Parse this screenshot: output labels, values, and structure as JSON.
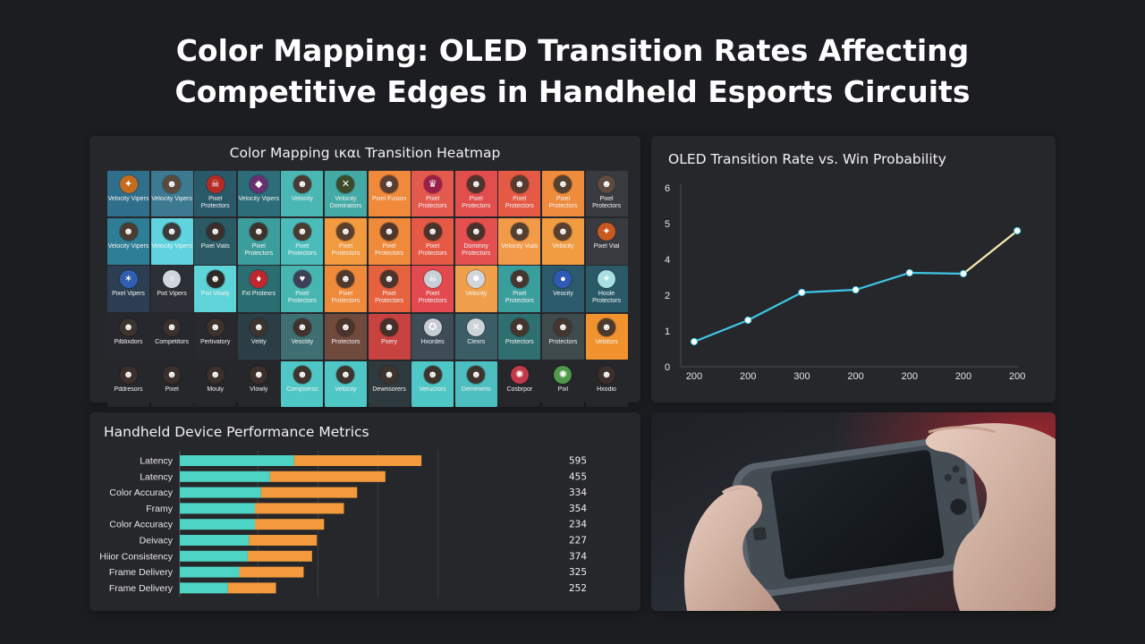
{
  "page": {
    "title_line1": "Color Mapping: OLED Transition Rates Affecting",
    "title_line2": "Competitive Edges in Handheld Esports Circuits"
  },
  "heatmap": {
    "title": "Color Mapping ικαι Transition Heatmap",
    "rows": [
      [
        {
          "label": "Velocity Vipers",
          "color": "#2f6f8c",
          "icon": "bat-emblem-icon",
          "glyph": "✦",
          "icon_color": "#c56b1d"
        },
        {
          "label": "Velocity Vipers",
          "color": "#3d7990",
          "icon": "player-portrait-icon",
          "glyph": "☻",
          "icon_color": "#5a4a3e"
        },
        {
          "label": "Pixel Protectors",
          "color": "#2a5a6a",
          "icon": "demon-emblem-icon",
          "glyph": "☠",
          "icon_color": "#b52a22"
        },
        {
          "label": "Velocity Vipers",
          "color": "#2c6d79",
          "icon": "wolf-emblem-icon",
          "glyph": "◆",
          "icon_color": "#6a2f6e"
        },
        {
          "label": "Velocity",
          "color": "#4ab7b4",
          "icon": "player-portrait-icon",
          "glyph": "☻",
          "icon_color": "#4b3a33"
        },
        {
          "label": "Velocity Dominators",
          "color": "#44aaa5",
          "icon": "eagle-emblem-icon",
          "glyph": "✕",
          "icon_color": "#3d4a2a"
        },
        {
          "label": "Pixel Fusion",
          "color": "#f1893a",
          "icon": "player-portrait-icon",
          "glyph": "☻",
          "icon_color": "#5b3f33"
        },
        {
          "label": "Pixel Protectors",
          "color": "#e45a4e",
          "icon": "crest-emblem-icon",
          "glyph": "♛",
          "icon_color": "#9a1e4a"
        },
        {
          "label": "Pixel Protectors",
          "color": "#e24d4d",
          "icon": "player-portrait-icon",
          "glyph": "☻",
          "icon_color": "#4d352d"
        },
        {
          "label": "Pixel Protectors",
          "color": "#e55a44",
          "icon": "player-portrait-icon",
          "glyph": "☻",
          "icon_color": "#5a3b30"
        },
        {
          "label": "Pixel Protectors",
          "color": "#ef8b3c",
          "icon": "player-portrait-icon",
          "glyph": "☻",
          "icon_color": "#54402f"
        },
        {
          "label": "Pixel Protectors",
          "color": "#3a3b40",
          "icon": "player-portrait-icon",
          "glyph": "☻",
          "icon_color": "#5e4a3f"
        }
      ],
      [
        {
          "label": "Velocity Vipers",
          "color": "#2e7f96",
          "icon": "player-portrait-icon",
          "glyph": "☻",
          "icon_color": "#4a3b33"
        },
        {
          "label": "Velocity Vipers",
          "color": "#5fd3e0",
          "icon": "player-portrait-icon",
          "glyph": "☻",
          "icon_color": "#3d3a3a"
        },
        {
          "label": "Pixel Vials",
          "color": "#2a5a64",
          "icon": "player-portrait-icon",
          "glyph": "☻",
          "icon_color": "#3a2f2a"
        },
        {
          "label": "Pixel Protectors",
          "color": "#3b9d9c",
          "icon": "player-portrait-icon",
          "glyph": "☻",
          "icon_color": "#3e322c"
        },
        {
          "label": "Pixel Protectors",
          "color": "#4cbcbb",
          "icon": "player-portrait-icon",
          "glyph": "☻",
          "icon_color": "#4a3b30"
        },
        {
          "label": "Pixel Protectors",
          "color": "#f19a3e",
          "icon": "player-portrait-icon",
          "glyph": "☻",
          "icon_color": "#5a3f2e"
        },
        {
          "label": "Pixel Protectors",
          "color": "#ef8a3b",
          "icon": "player-portrait-icon",
          "glyph": "☻",
          "icon_color": "#50372c"
        },
        {
          "label": "Pixel Protectors",
          "color": "#e65a45",
          "icon": "player-portrait-icon",
          "glyph": "☻",
          "icon_color": "#4a332b"
        },
        {
          "label": "Dominny Protectors",
          "color": "#e45050",
          "icon": "player-portrait-icon",
          "glyph": "☻",
          "icon_color": "#48322a"
        },
        {
          "label": "Velocity Vials",
          "color": "#f29a48",
          "icon": "player-portrait-icon",
          "glyph": "☻",
          "icon_color": "#54402f"
        },
        {
          "label": "Velocity",
          "color": "#f29c42",
          "icon": "player-portrait-icon",
          "glyph": "☻",
          "icon_color": "#57402f"
        },
        {
          "label": "Pixel Vial",
          "color": "#3a3b40",
          "icon": "bat-emblem-icon",
          "glyph": "✦",
          "icon_color": "#c95a1f"
        }
      ],
      [
        {
          "label": "Pixel Vipers",
          "color": "#2c3e52",
          "icon": "shield-emblem-icon",
          "glyph": "✶",
          "icon_color": "#2f5fb0"
        },
        {
          "label": "Pixt Vipers",
          "color": "#2c2f36",
          "icon": "shield-emblem-icon",
          "glyph": "♆",
          "icon_color": "#cfd6dd"
        },
        {
          "label": "Pixl Vowly",
          "color": "#5ed4d8",
          "icon": "player-portrait-icon",
          "glyph": "☻",
          "icon_color": "#2d2a27"
        },
        {
          "label": "Fxl Protexrs",
          "color": "#2a6e72",
          "icon": "crest-emblem-icon",
          "glyph": "♦",
          "icon_color": "#c0262d"
        },
        {
          "label": "Pixel Protectors",
          "color": "#48b6b0",
          "icon": "wolf-emblem-icon",
          "glyph": "♥",
          "icon_color": "#3c3f55"
        },
        {
          "label": "Pixel Protectors",
          "color": "#ef8a3b",
          "icon": "player-portrait-icon",
          "glyph": "☻",
          "icon_color": "#51392d"
        },
        {
          "label": "Pixel Protectors",
          "color": "#e6623f",
          "icon": "player-portrait-icon",
          "glyph": "☻",
          "icon_color": "#4a342b"
        },
        {
          "label": "Pixel Protectors",
          "color": "#e24a4f",
          "icon": "skull-emblem-icon",
          "glyph": "☠",
          "icon_color": "#c8ced6"
        },
        {
          "label": "Velocity",
          "color": "#f0a04a",
          "icon": "crest-emblem-icon",
          "glyph": "✹",
          "icon_color": "#d1d6dc"
        },
        {
          "label": "Pixel Protectors",
          "color": "#3a9e9d",
          "icon": "player-portrait-icon",
          "glyph": "☻",
          "icon_color": "#453730"
        },
        {
          "label": "Veocity",
          "color": "#2b5a6b",
          "icon": "shield-emblem-icon",
          "glyph": "●",
          "icon_color": "#2e59b5"
        },
        {
          "label": "Hoole Protectors",
          "color": "#2a5a68",
          "icon": "eagle-emblem-icon",
          "glyph": "✦",
          "icon_color": "#a8e0e4"
        }
      ],
      [
        {
          "label": "Pilblixdors",
          "color": "#27282d",
          "icon": "player-portrait-icon",
          "glyph": "☻",
          "icon_color": "#3d332f"
        },
        {
          "label": "Competitors",
          "color": "#27282d",
          "icon": "player-portrait-icon",
          "glyph": "☻",
          "icon_color": "#3b312c"
        },
        {
          "label": "Pertivatory",
          "color": "#28292e",
          "icon": "player-portrait-icon",
          "glyph": "☻",
          "icon_color": "#3d322c"
        },
        {
          "label": "Velity",
          "color": "#2b3e46",
          "icon": "player-portrait-icon",
          "glyph": "☻",
          "icon_color": "#3d342f"
        },
        {
          "label": "Veoctity",
          "color": "#3f6f72",
          "icon": "player-portrait-icon",
          "glyph": "☻",
          "icon_color": "#41332b"
        },
        {
          "label": "Protectors",
          "color": "#6f4a3d",
          "icon": "player-portrait-icon",
          "glyph": "☻",
          "icon_color": "#4a352c"
        },
        {
          "label": "Pxery",
          "color": "#c8423f",
          "icon": "player-portrait-icon",
          "glyph": "☻",
          "icon_color": "#45302a"
        },
        {
          "label": "Hxordes",
          "color": "#3e4c58",
          "icon": "skull-emblem-icon",
          "glyph": "✪",
          "icon_color": "#c6cbd2"
        },
        {
          "label": "Clexrs",
          "color": "#3b5d66",
          "icon": "crest-emblem-icon",
          "glyph": "✕",
          "icon_color": "#cdd3d8"
        },
        {
          "label": "Protectors",
          "color": "#2f6f70",
          "icon": "player-portrait-icon",
          "glyph": "☻",
          "icon_color": "#44352d"
        },
        {
          "label": "Protectors",
          "color": "#3f4a4c",
          "icon": "player-portrait-icon",
          "glyph": "☻",
          "icon_color": "#44362f"
        },
        {
          "label": "Velotors",
          "color": "#f0932f",
          "icon": "player-portrait-icon",
          "glyph": "☻",
          "icon_color": "#4d3a2c"
        }
      ],
      [
        {
          "label": "Pddresors",
          "color": "#26272b",
          "icon": "player-portrait-icon",
          "glyph": "☻",
          "icon_color": "#3b302b"
        },
        {
          "label": "Pixel",
          "color": "#26272b",
          "icon": "player-portrait-icon",
          "glyph": "☻",
          "icon_color": "#3b302b"
        },
        {
          "label": "Mouly",
          "color": "#26272b",
          "icon": "player-portrait-icon",
          "glyph": "☻",
          "icon_color": "#3b302b"
        },
        {
          "label": "Vlowly",
          "color": "#26272b",
          "icon": "player-portrait-icon",
          "glyph": "☻",
          "icon_color": "#3b302b"
        },
        {
          "label": "Compserss",
          "color": "#4fc7c6",
          "icon": "player-portrait-icon",
          "glyph": "☻",
          "icon_color": "#3e342e"
        },
        {
          "label": "Velocity",
          "color": "#4fc7c6",
          "icon": "player-portrait-icon",
          "glyph": "☻",
          "icon_color": "#3e342e"
        },
        {
          "label": "Dewnsorers",
          "color": "#2f3a3f",
          "icon": "player-portrait-icon",
          "glyph": "☻",
          "icon_color": "#3e342e"
        },
        {
          "label": "Verucrors",
          "color": "#4fc7c6",
          "icon": "player-portrait-icon",
          "glyph": "☻",
          "icon_color": "#3e342e"
        },
        {
          "label": "Derreneris",
          "color": "#4dbfc0",
          "icon": "player-portrait-icon",
          "glyph": "☻",
          "icon_color": "#3e342e"
        },
        {
          "label": "Cosbrpor",
          "color": "#26272b",
          "icon": "crest-emblem-icon",
          "glyph": "✺",
          "icon_color": "#c23a4a"
        },
        {
          "label": "Pixl",
          "color": "#26272b",
          "icon": "crest-emblem-icon",
          "glyph": "✺",
          "icon_color": "#4f9a4a"
        },
        {
          "label": "Hxodio",
          "color": "#26272b",
          "icon": "player-portrait-icon",
          "glyph": "☻",
          "icon_color": "#3b302b"
        }
      ]
    ]
  },
  "line_chart": {
    "title": "OLED Transition Rate vs. Win Probability"
  },
  "bar_chart": {
    "title": "Handheld Device Performance Metrics"
  },
  "photo": {
    "subject": "handheld-console-photo"
  },
  "chart_data": [
    {
      "type": "heatmap",
      "title": "Color Mapping ικαι Transition Heatmap",
      "rows": 5,
      "columns": 12
    },
    {
      "type": "line",
      "title": "OLED Transition Rate vs. Win Probability",
      "x": [
        "200",
        "200",
        "300",
        "200",
        "200",
        "200",
        "200"
      ],
      "y": [
        0.7,
        1.3,
        2.15,
        2.3,
        3.25,
        3.2,
        4.8
      ],
      "y_ticks": [
        0,
        1,
        2,
        4,
        5,
        6
      ],
      "ylim": [
        0,
        6
      ],
      "grid": true,
      "series_color": "#3ec6e6",
      "series_end_color": "#f5ecb0"
    },
    {
      "type": "bar",
      "title": "Handheld Device Performance Metrics",
      "categories": [
        "Latency",
        "Latency",
        "Color Accuracy",
        "Framy",
        "Color Accuracy",
        "Deivacy",
        "Hiior Consistency",
        "Frame Delivery",
        "Frame Delivery"
      ],
      "values_labels": [
        "595",
        "455",
        "334",
        "354",
        "234",
        "227",
        "374",
        "325",
        "252"
      ],
      "series": [
        {
          "values": [
            190,
            150,
            135,
            125,
            125,
            115,
            113,
            99,
            80
          ],
          "color": "#4ed4c4"
        },
        {
          "values": [
            212,
            192,
            160,
            148,
            115,
            113,
            107,
            107,
            80
          ],
          "color": "#f39b3c"
        }
      ],
      "xlim": [
        0,
        400
      ],
      "grid": true
    }
  ]
}
